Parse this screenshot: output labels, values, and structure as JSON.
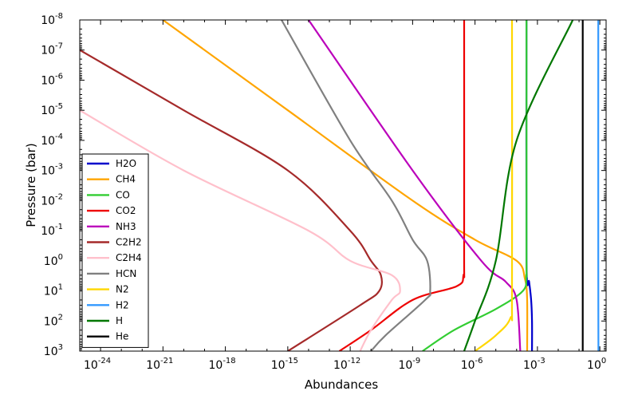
{
  "chart_data": {
    "type": "line",
    "xlabel": "Abundances",
    "ylabel": "Pressure (bar)",
    "x_scale": "log",
    "y_scale": "log",
    "y_inverted": true,
    "xlim": [
      1e-25,
      2
    ],
    "ylim": [
      1000.0,
      1e-08
    ],
    "x_tick_labels": [
      {
        "base": "10",
        "exp": "-24",
        "value": 1e-24
      },
      {
        "base": "10",
        "exp": "-21",
        "value": 1e-21
      },
      {
        "base": "10",
        "exp": "-18",
        "value": 1e-18
      },
      {
        "base": "10",
        "exp": "-15",
        "value": 1e-15
      },
      {
        "base": "10",
        "exp": "-12",
        "value": 1e-12
      },
      {
        "base": "10",
        "exp": "-9",
        "value": 1e-09
      },
      {
        "base": "10",
        "exp": "-6",
        "value": 1e-06
      },
      {
        "base": "10",
        "exp": "-3",
        "value": 0.001
      },
      {
        "base": "10",
        "exp": "0",
        "value": 1
      }
    ],
    "y_tick_labels": [
      {
        "base": "10",
        "exp": "-8",
        "value": 1e-08
      },
      {
        "base": "10",
        "exp": "-7",
        "value": 1e-07
      },
      {
        "base": "10",
        "exp": "-6",
        "value": 1e-06
      },
      {
        "base": "10",
        "exp": "-5",
        "value": 1e-05
      },
      {
        "base": "10",
        "exp": "-4",
        "value": 0.0001
      },
      {
        "base": "10",
        "exp": "-3",
        "value": 0.001
      },
      {
        "base": "10",
        "exp": "-2",
        "value": 0.01
      },
      {
        "base": "10",
        "exp": "-1",
        "value": 0.1
      },
      {
        "base": "10",
        "exp": "0",
        "value": 1
      },
      {
        "base": "10",
        "exp": "1",
        "value": 10.0
      },
      {
        "base": "10",
        "exp": "2",
        "value": 100.0
      },
      {
        "base": "10",
        "exp": "3",
        "value": 1000.0
      }
    ],
    "legend_position": "lower-left",
    "series": [
      {
        "name": "H2O",
        "color": "#0000cc",
        "points": [
          [
            0.0003,
            1e-08
          ],
          [
            0.0003,
            1
          ],
          [
            0.0004,
            5
          ],
          [
            0.0005,
            20
          ],
          [
            0.00055,
            100
          ],
          [
            0.00055,
            1000.0
          ]
        ]
      },
      {
        "name": "CH4",
        "color": "#ffa500",
        "points": [
          [
            1e-21,
            1e-08
          ],
          [
            1e-15,
            1e-05
          ],
          [
            1e-09,
            0.01
          ],
          [
            1e-06,
            0.2
          ],
          [
            0.0001,
            1
          ],
          [
            0.00025,
            4
          ],
          [
            0.00032,
            20
          ],
          [
            0.00032,
            1000.0
          ]
        ]
      },
      {
        "name": "CO",
        "color": "#32cd32",
        "points": [
          [
            0.0003,
            1e-08
          ],
          [
            0.0003,
            0.5
          ],
          [
            0.00029,
            3
          ],
          [
            0.0002,
            10
          ],
          [
            1e-05,
            40
          ],
          [
            1e-07,
            200
          ],
          [
            3e-09,
            1000.0
          ]
        ]
      },
      {
        "name": "CO2",
        "color": "#ee0000",
        "points": [
          [
            3e-07,
            1e-08
          ],
          [
            3e-07,
            0.5
          ],
          [
            2.8e-07,
            3
          ],
          [
            1.3e-07,
            7
          ],
          [
            1e-09,
            20
          ],
          [
            1e-11,
            200
          ],
          [
            3e-13,
            1000.0
          ]
        ]
      },
      {
        "name": "NH3",
        "color": "#bb00bb",
        "points": [
          [
            1e-14,
            1e-08
          ],
          [
            1e-09,
            0.001
          ],
          [
            2e-06,
            1
          ],
          [
            3e-05,
            5
          ],
          [
            0.0001,
            20
          ],
          [
            0.00015,
            1000.0
          ]
        ]
      },
      {
        "name": "C2H2",
        "color": "#a52a2a",
        "points": [
          [
            1e-25,
            1e-07
          ],
          [
            1e-20,
            1e-05
          ],
          [
            1e-15,
            0.001
          ],
          [
            1e-12,
            0.1
          ],
          [
            1e-11,
            1
          ],
          [
            3e-11,
            3
          ],
          [
            2.5e-11,
            10
          ],
          [
            3e-12,
            30
          ],
          [
            1e-15,
            1000.0
          ]
        ]
      },
      {
        "name": "C2H4",
        "color": "#ffc0cb",
        "points": [
          [
            1e-25,
            1e-05
          ],
          [
            1e-20,
            0.001
          ],
          [
            1e-14,
            0.1
          ],
          [
            1e-12,
            1
          ],
          [
            1e-10,
            3
          ],
          [
            2.5e-10,
            10
          ],
          [
            1e-10,
            20
          ],
          [
            1e-11,
            200
          ],
          [
            3e-12,
            1000.0
          ]
        ]
      },
      {
        "name": "HCN",
        "color": "#808080",
        "points": [
          [
            5e-16,
            1e-08
          ],
          [
            1e-12,
            0.0001
          ],
          [
            1e-10,
            0.01
          ],
          [
            1e-09,
            0.2
          ],
          [
            5e-09,
            1
          ],
          [
            7e-09,
            10
          ],
          [
            4e-09,
            20
          ],
          [
            5e-11,
            300
          ],
          [
            1e-11,
            1000.0
          ]
        ]
      },
      {
        "name": "N2",
        "color": "#ffd700",
        "points": [
          [
            6e-05,
            1e-08
          ],
          [
            6e-05,
            10
          ],
          [
            5e-05,
            80
          ],
          [
            1e-05,
            300
          ],
          [
            1e-06,
            1000.0
          ]
        ]
      },
      {
        "name": "H2",
        "color": "#3399ff",
        "points": [
          [
            0.84,
            1e-08
          ],
          [
            0.84,
            1
          ],
          [
            0.85,
            100
          ],
          [
            0.86,
            1000.0
          ]
        ]
      },
      {
        "name": "H",
        "color": "#007700",
        "points": [
          [
            0.05,
            1e-08
          ],
          [
            0.0001,
            0.0001
          ],
          [
            1e-05,
            1
          ],
          [
            1e-06,
            100
          ],
          [
            3e-07,
            1000.0
          ]
        ]
      },
      {
        "name": "He",
        "color": "#000000",
        "points": [
          [
            0.15,
            1e-08
          ],
          [
            0.15,
            1000.0
          ]
        ]
      }
    ]
  }
}
